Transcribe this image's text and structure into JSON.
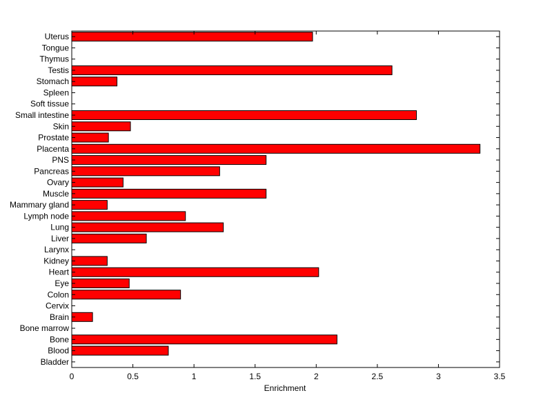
{
  "chart_data": {
    "type": "bar",
    "orientation": "horizontal",
    "title": "",
    "xlabel": "Enrichment",
    "ylabel": "",
    "xlim": [
      0,
      3.5
    ],
    "xticks": [
      0,
      0.5,
      1,
      1.5,
      2,
      2.5,
      3,
      3.5
    ],
    "xtick_labels": [
      "0",
      "0.5",
      "1",
      "1.5",
      "2",
      "2.5",
      "3",
      "3.5"
    ],
    "grid": false,
    "legend": "none",
    "bar_color": "#ff0000",
    "bar_edge_color": "#000000",
    "categories": [
      "Bladder",
      "Blood",
      "Bone",
      "Bone marrow",
      "Brain",
      "Cervix",
      "Colon",
      "Eye",
      "Heart",
      "Kidney",
      "Larynx",
      "Liver",
      "Lung",
      "Lymph node",
      "Mammary gland",
      "Muscle",
      "Ovary",
      "Pancreas",
      "PNS",
      "Placenta",
      "Prostate",
      "Skin",
      "Small intestine",
      "Soft tissue",
      "Spleen",
      "Stomach",
      "Testis",
      "Thymus",
      "Tongue",
      "Uterus"
    ],
    "values": [
      0,
      0.79,
      2.17,
      0,
      0.17,
      0,
      0.89,
      0.47,
      2.02,
      0.29,
      0,
      0.61,
      1.24,
      0.93,
      0.29,
      1.59,
      0.42,
      1.21,
      1.59,
      3.34,
      0.3,
      0.48,
      2.82,
      0,
      0,
      0.37,
      2.62,
      0,
      0,
      1.97
    ]
  }
}
